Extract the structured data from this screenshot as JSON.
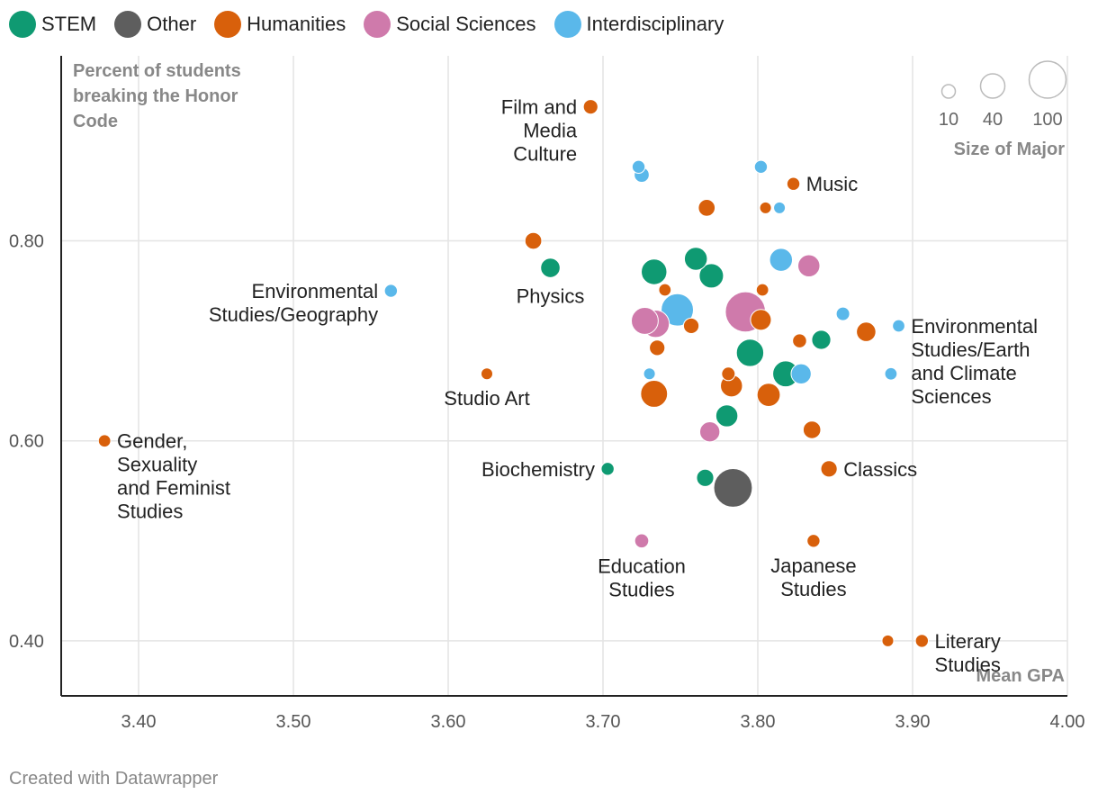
{
  "chart_data": {
    "type": "scatter",
    "title": "",
    "ylabel_lines": [
      "Percent of students",
      "breaking the Honor",
      "Code"
    ],
    "xlabel": "Mean GPA",
    "xlim": [
      3.35,
      4.0
    ],
    "ylim": [
      0.345,
      0.985
    ],
    "xticks": [
      3.4,
      3.5,
      3.6,
      3.7,
      3.8,
      3.9,
      4.0
    ],
    "xtick_labels": [
      "3.40",
      "3.50",
      "3.60",
      "3.70",
      "3.80",
      "3.90",
      "4.00"
    ],
    "yticks": [
      0.4,
      0.6,
      0.8
    ],
    "ytick_labels": [
      "0.40",
      "0.60",
      "0.80"
    ],
    "categories": [
      {
        "name": "STEM",
        "color": "#0f9a72"
      },
      {
        "name": "Other",
        "color": "#5e5e5e"
      },
      {
        "name": "Humanities",
        "color": "#d8600b"
      },
      {
        "name": "Social Sciences",
        "color": "#cf7aab"
      },
      {
        "name": "Interdisciplinary",
        "color": "#5ab8ea"
      }
    ],
    "size_legend": {
      "title": "Size of Major",
      "values": [
        10,
        40,
        100
      ],
      "labels": [
        "10",
        "40",
        "100"
      ]
    },
    "points": [
      {
        "x": 3.692,
        "y": 0.934,
        "size": 12,
        "category": "Humanities",
        "label": "Film and Media Culture",
        "label_lines": [
          "Film and",
          "Media",
          "Culture"
        ],
        "label_pos": "left"
      },
      {
        "x": 3.723,
        "y": 0.874,
        "size": 9,
        "category": "Interdisciplinary"
      },
      {
        "x": 3.725,
        "y": 0.866,
        "size": 13,
        "category": "Interdisciplinary"
      },
      {
        "x": 3.802,
        "y": 0.874,
        "size": 9,
        "category": "Interdisciplinary"
      },
      {
        "x": 3.823,
        "y": 0.857,
        "size": 9,
        "category": "Humanities",
        "label": "Music",
        "label_lines": [
          "Music"
        ],
        "label_pos": "right"
      },
      {
        "x": 3.767,
        "y": 0.833,
        "size": 17,
        "category": "Humanities"
      },
      {
        "x": 3.805,
        "y": 0.833,
        "size": 7,
        "category": "Humanities"
      },
      {
        "x": 3.814,
        "y": 0.833,
        "size": 7,
        "category": "Interdisciplinary"
      },
      {
        "x": 3.655,
        "y": 0.8,
        "size": 17,
        "category": "Humanities"
      },
      {
        "x": 3.666,
        "y": 0.773,
        "size": 24,
        "category": "STEM",
        "label": "Physics",
        "label_lines": [
          "Physics"
        ],
        "label_pos": "below"
      },
      {
        "x": 3.733,
        "y": 0.769,
        "size": 45,
        "category": "STEM"
      },
      {
        "x": 3.76,
        "y": 0.782,
        "size": 35,
        "category": "STEM"
      },
      {
        "x": 3.77,
        "y": 0.765,
        "size": 40,
        "category": "STEM"
      },
      {
        "x": 3.815,
        "y": 0.781,
        "size": 35,
        "category": "Interdisciplinary"
      },
      {
        "x": 3.833,
        "y": 0.775,
        "size": 32,
        "category": "Social Sciences"
      },
      {
        "x": 3.74,
        "y": 0.751,
        "size": 8,
        "category": "Humanities"
      },
      {
        "x": 3.803,
        "y": 0.751,
        "size": 8,
        "category": "Humanities"
      },
      {
        "x": 3.563,
        "y": 0.75,
        "size": 9,
        "category": "Interdisciplinary",
        "label": "Environmental Studies/Geography",
        "label_lines": [
          "Environmental",
          "Studies/Geography"
        ],
        "label_pos": "left"
      },
      {
        "x": 3.748,
        "y": 0.731,
        "size": 75,
        "category": "Interdisciplinary"
      },
      {
        "x": 3.792,
        "y": 0.729,
        "size": 120,
        "category": "Social Sciences"
      },
      {
        "x": 3.727,
        "y": 0.72,
        "size": 50,
        "category": "Social Sciences"
      },
      {
        "x": 3.734,
        "y": 0.717,
        "size": 52,
        "category": "Social Sciences"
      },
      {
        "x": 3.757,
        "y": 0.715,
        "size": 14,
        "category": "Humanities"
      },
      {
        "x": 3.802,
        "y": 0.721,
        "size": 28,
        "category": "Humanities"
      },
      {
        "x": 3.855,
        "y": 0.727,
        "size": 10,
        "category": "Interdisciplinary"
      },
      {
        "x": 3.891,
        "y": 0.715,
        "size": 8,
        "category": "Interdisciplinary",
        "label": "Environmental Studies/Earth and Climate Sciences",
        "label_lines": [
          "Environmental",
          "Studies/Earth",
          "and Climate",
          "Sciences"
        ],
        "label_pos": "right"
      },
      {
        "x": 3.87,
        "y": 0.709,
        "size": 24,
        "category": "Humanities"
      },
      {
        "x": 3.827,
        "y": 0.7,
        "size": 11,
        "category": "Humanities"
      },
      {
        "x": 3.841,
        "y": 0.701,
        "size": 23,
        "category": "STEM"
      },
      {
        "x": 3.735,
        "y": 0.693,
        "size": 14,
        "category": "Humanities"
      },
      {
        "x": 3.795,
        "y": 0.688,
        "size": 52,
        "category": "STEM"
      },
      {
        "x": 3.625,
        "y": 0.667,
        "size": 7,
        "category": "Humanities",
        "label": "Studio Art",
        "label_lines": [
          "Studio Art"
        ],
        "label_pos": "below"
      },
      {
        "x": 3.73,
        "y": 0.667,
        "size": 7,
        "category": "Interdisciplinary"
      },
      {
        "x": 3.781,
        "y": 0.667,
        "size": 10,
        "category": "Humanities"
      },
      {
        "x": 3.828,
        "y": 0.667,
        "size": 26,
        "category": "Interdisciplinary"
      },
      {
        "x": 3.818,
        "y": 0.667,
        "size": 46,
        "category": "STEM"
      },
      {
        "x": 3.886,
        "y": 0.667,
        "size": 8,
        "category": "Interdisciplinary"
      },
      {
        "x": 3.783,
        "y": 0.655,
        "size": 32,
        "category": "Humanities"
      },
      {
        "x": 3.733,
        "y": 0.647,
        "size": 50,
        "category": "Humanities"
      },
      {
        "x": 3.807,
        "y": 0.646,
        "size": 36,
        "category": "Humanities"
      },
      {
        "x": 3.78,
        "y": 0.625,
        "size": 32,
        "category": "STEM"
      },
      {
        "x": 3.835,
        "y": 0.611,
        "size": 19,
        "category": "Humanities"
      },
      {
        "x": 3.769,
        "y": 0.609,
        "size": 26,
        "category": "Social Sciences"
      },
      {
        "x": 3.378,
        "y": 0.6,
        "size": 8,
        "category": "Humanities",
        "label": "Gender, Sexuality and Feminist Studies",
        "label_lines": [
          "Gender,",
          "Sexuality",
          "and Feminist",
          "Studies"
        ],
        "label_pos": "right"
      },
      {
        "x": 3.703,
        "y": 0.572,
        "size": 9,
        "category": "STEM",
        "label": "Biochemistry",
        "label_lines": [
          "Biochemistry"
        ],
        "label_pos": "left"
      },
      {
        "x": 3.846,
        "y": 0.572,
        "size": 16,
        "category": "Humanities",
        "label": "Classics",
        "label_lines": [
          "Classics"
        ],
        "label_pos": "right"
      },
      {
        "x": 3.766,
        "y": 0.563,
        "size": 18,
        "category": "STEM"
      },
      {
        "x": 3.784,
        "y": 0.553,
        "size": 110,
        "category": "Other"
      },
      {
        "x": 3.725,
        "y": 0.5,
        "size": 11,
        "category": "Social Sciences",
        "label": "Education Studies",
        "label_lines": [
          "Education",
          "Studies"
        ],
        "label_pos": "below"
      },
      {
        "x": 3.836,
        "y": 0.5,
        "size": 9,
        "category": "Humanities",
        "label": "Japanese Studies",
        "label_lines": [
          "Japanese",
          "Studies"
        ],
        "label_pos": "below"
      },
      {
        "x": 3.884,
        "y": 0.4,
        "size": 7,
        "category": "Humanities"
      },
      {
        "x": 3.906,
        "y": 0.4,
        "size": 9,
        "category": "Humanities",
        "label": "Literary Studies",
        "label_lines": [
          "Literary",
          "Studies"
        ],
        "label_pos": "right"
      }
    ]
  },
  "footer": {
    "credit": "Created with Datawrapper"
  }
}
